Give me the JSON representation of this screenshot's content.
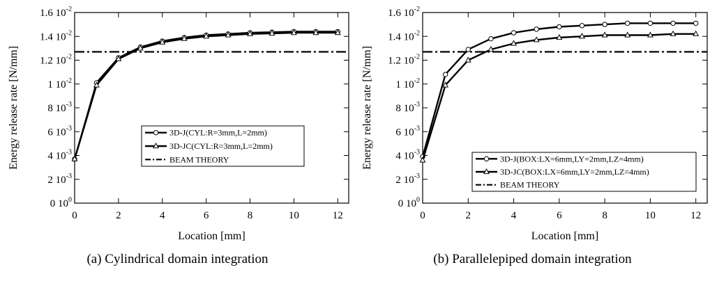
{
  "chart_data": [
    {
      "type": "line",
      "caption": "(a) Cylindrical domain integration",
      "xlabel": "Location [mm]",
      "ylabel": "Energy release rate [N/mm]",
      "xlim": [
        0,
        12.5
      ],
      "ylim": [
        0,
        0.016
      ],
      "x_ticks": [
        0,
        2,
        4,
        6,
        8,
        10,
        12
      ],
      "y_ticks": [
        {
          "value": 0,
          "mant": "0 10",
          "exp": "0"
        },
        {
          "value": 0.002,
          "mant": "2 10",
          "exp": "-3"
        },
        {
          "value": 0.004,
          "mant": "4 10",
          "exp": "-3"
        },
        {
          "value": 0.006,
          "mant": "6 10",
          "exp": "-3"
        },
        {
          "value": 0.008,
          "mant": "8 10",
          "exp": "-3"
        },
        {
          "value": 0.01,
          "mant": "1 10",
          "exp": "-2"
        },
        {
          "value": 0.012,
          "mant": "1.2 10",
          "exp": "-2"
        },
        {
          "value": 0.014,
          "mant": "1.4 10",
          "exp": "-2"
        },
        {
          "value": 0.016,
          "mant": "1.6 10",
          "exp": "-2"
        }
      ],
      "legend_position": "lower-right",
      "x": [
        0,
        1,
        2,
        3,
        4,
        5,
        6,
        7,
        8,
        9,
        10,
        11,
        12
      ],
      "series": [
        {
          "name": "3D-J(CYL:R=3mm,L=2mm)",
          "marker": "circle",
          "values": [
            0.0037,
            0.0101,
            0.0122,
            0.0131,
            0.0136,
            0.0139,
            0.0141,
            0.0142,
            0.0143,
            0.01435,
            0.0144,
            0.0144,
            0.0144
          ]
        },
        {
          "name": "3D-JC(CYL:R=3mm,L=2mm)",
          "marker": "triangle",
          "values": [
            0.0037,
            0.0099,
            0.0121,
            0.013,
            0.0135,
            0.0138,
            0.014,
            0.0141,
            0.0142,
            0.01425,
            0.0143,
            0.0143,
            0.0143
          ]
        },
        {
          "name": "BEAM THEORY",
          "marker": "none",
          "dashed": true,
          "values": [
            0.0127,
            0.0127,
            0.0127,
            0.0127,
            0.0127,
            0.0127,
            0.0127,
            0.0127,
            0.0127,
            0.0127,
            0.0127,
            0.0127,
            0.0127
          ]
        }
      ]
    },
    {
      "type": "line",
      "caption": "(b) Parallelepiped domain integration",
      "xlabel": "Location [mm]",
      "ylabel": "Energy release rate [N/mm]",
      "xlim": [
        0,
        12.5
      ],
      "ylim": [
        0,
        0.016
      ],
      "x_ticks": [
        0,
        2,
        4,
        6,
        8,
        10,
        12
      ],
      "y_ticks": [
        {
          "value": 0,
          "mant": "0 10",
          "exp": "0"
        },
        {
          "value": 0.002,
          "mant": "2 10",
          "exp": "-3"
        },
        {
          "value": 0.004,
          "mant": "4 10",
          "exp": "-3"
        },
        {
          "value": 0.006,
          "mant": "6 10",
          "exp": "-3"
        },
        {
          "value": 0.008,
          "mant": "8 10",
          "exp": "-3"
        },
        {
          "value": 0.01,
          "mant": "1 10",
          "exp": "-2"
        },
        {
          "value": 0.012,
          "mant": "1.2 10",
          "exp": "-2"
        },
        {
          "value": 0.014,
          "mant": "1.4 10",
          "exp": "-2"
        },
        {
          "value": 0.016,
          "mant": "1.6 10",
          "exp": "-2"
        }
      ],
      "legend_position": "lower-right",
      "x": [
        0,
        1,
        2,
        3,
        4,
        5,
        6,
        7,
        8,
        9,
        10,
        11,
        12
      ],
      "series": [
        {
          "name": "3D-J(BOX:LX=6mm,LY=2mm,LZ=4mm)",
          "marker": "circle",
          "values": [
            0.0039,
            0.0108,
            0.0129,
            0.0138,
            0.0143,
            0.0146,
            0.0148,
            0.0149,
            0.015,
            0.0151,
            0.0151,
            0.0151,
            0.0151
          ]
        },
        {
          "name": "3D-JC(BOX:LX=6mm,LY=2mm,LZ=4mm)",
          "marker": "triangle",
          "values": [
            0.0036,
            0.0099,
            0.012,
            0.0129,
            0.0134,
            0.0137,
            0.0139,
            0.014,
            0.0141,
            0.0141,
            0.0141,
            0.0142,
            0.0142
          ]
        },
        {
          "name": "BEAM THEORY",
          "marker": "none",
          "dashed": true,
          "values": [
            0.0127,
            0.0127,
            0.0127,
            0.0127,
            0.0127,
            0.0127,
            0.0127,
            0.0127,
            0.0127,
            0.0127,
            0.0127,
            0.0127,
            0.0127
          ]
        }
      ]
    }
  ]
}
